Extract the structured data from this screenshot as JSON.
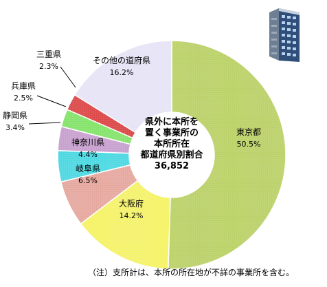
{
  "chart_data": {
    "type": "pie",
    "subtype": "donut",
    "center_label": [
      "県外に本所を",
      "置く事業所の",
      "本所所在",
      "都道府県別割合",
      "36,852"
    ],
    "unit": "%",
    "slices": [
      {
        "label": "東京都",
        "value": 50.5,
        "value_text": "50.5%",
        "color": "#bcd26a"
      },
      {
        "label": "大阪府",
        "value": 14.2,
        "value_text": "14.2%",
        "color": "#f5f26b"
      },
      {
        "label": "岐阜県",
        "value": 6.5,
        "value_text": "6.5%",
        "color": "#e6a9a0"
      },
      {
        "label": "神奈川県",
        "value": 4.4,
        "value_text": "4.4%",
        "color": "#4fd9e2"
      },
      {
        "label": "静岡県",
        "value": 3.4,
        "value_text": "3.4%",
        "color": "#c8a2cf"
      },
      {
        "label": "兵庫県",
        "value": 2.5,
        "value_text": "2.5%",
        "color": "#86e36d"
      },
      {
        "label": "三重県",
        "value": 2.3,
        "value_text": "2.3%",
        "color": "#dc4a4a"
      },
      {
        "label": "その他の道府県",
        "value": 16.2,
        "value_text": "16.2%",
        "color": "#e7e4f6"
      }
    ],
    "legend": "none"
  },
  "note": "（注）支所計は、本所の所在地が不詳の事業所を含む。",
  "building_icon": "office-building-icon"
}
